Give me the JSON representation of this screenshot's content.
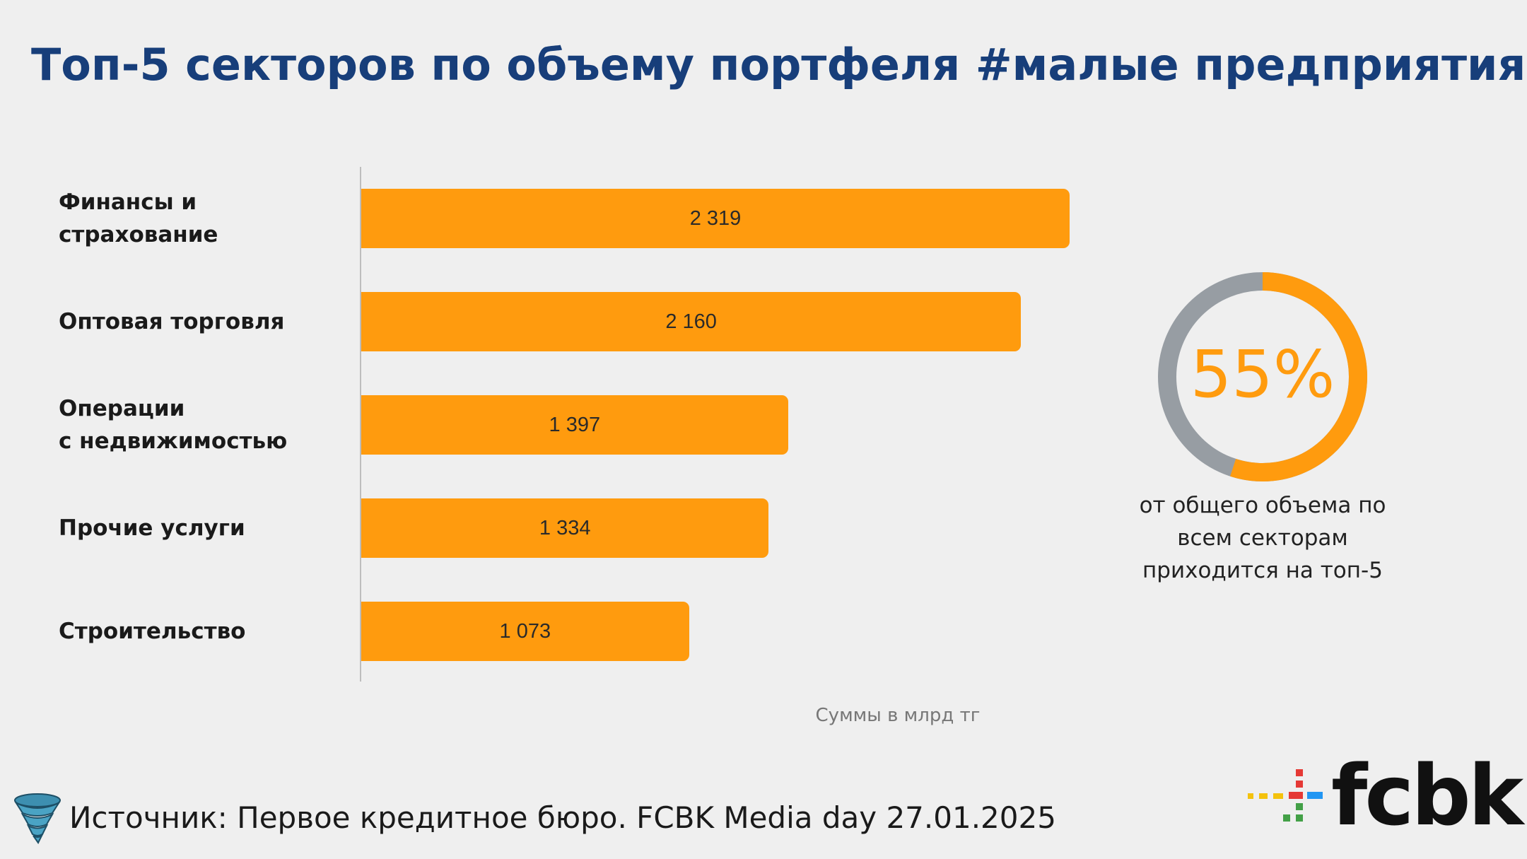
{
  "slide": {
    "title": "Топ-5 секторов по объему портфеля #малые предприятия",
    "units_note": "Суммы в млрд тг",
    "source": "Источник: Первое кредитное бюро. FCBK Media day 27.01.2025",
    "logo_text": "fcbk"
  },
  "colors": {
    "bar": "#ff9b0e",
    "title": "#173e7a",
    "donut_accent": "#ff9b0e",
    "donut_rest": "#979da3"
  },
  "chart_data": [
    {
      "type": "bar",
      "orientation": "horizontal",
      "categories": [
        "Финансы и страхование",
        "Оптовая торговля",
        "Операции с недвижимостью",
        "Прочие услуги",
        "Строительство"
      ],
      "category_lines": [
        [
          "Финансы и",
          "страхование"
        ],
        [
          "Оптовая торговля"
        ],
        [
          "Операции",
          "с недвижимостью"
        ],
        [
          "Прочие услуги"
        ],
        [
          "Строительство"
        ]
      ],
      "values": [
        2319,
        2160,
        1397,
        1334,
        1073
      ],
      "value_labels": [
        "2 319",
        "2 160",
        "1 397",
        "1 334",
        "1 073"
      ],
      "xlim": [
        0,
        3400
      ],
      "grid": false,
      "legend": "none"
    },
    {
      "type": "pie",
      "variant": "donut",
      "values": [
        55,
        45
      ],
      "label": "55%",
      "caption_lines": [
        "от общего объема по",
        "всем секторам",
        "приходится на топ-5"
      ]
    }
  ]
}
